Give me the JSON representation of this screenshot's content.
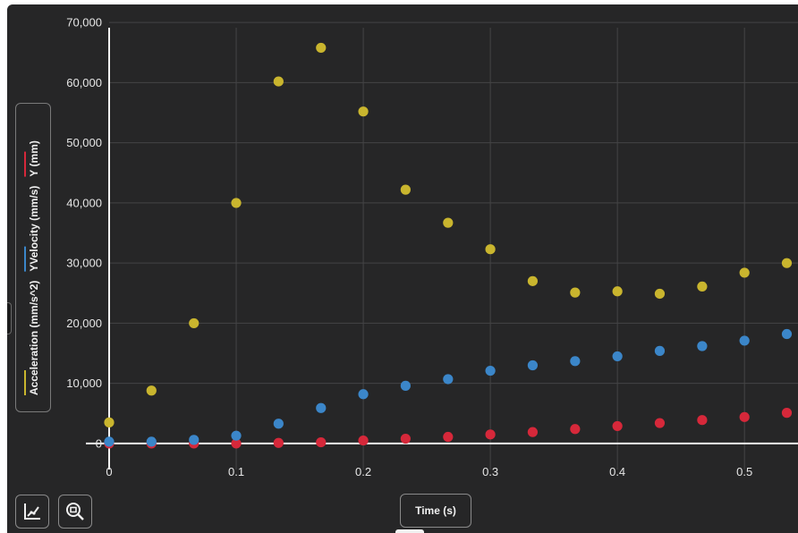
{
  "chart_data": {
    "type": "scatter",
    "title": "",
    "xlabel": "Time (s)",
    "ylabel": "",
    "x": [
      0,
      0.0333,
      0.0667,
      0.1,
      0.1333,
      0.1667,
      0.2,
      0.2333,
      0.2667,
      0.3,
      0.3333,
      0.3667,
      0.4,
      0.4333,
      0.4667,
      0.5,
      0.5333
    ],
    "xlim": [
      0,
      0.54
    ],
    "ylim": [
      -7000,
      73000
    ],
    "x_ticks": [
      0,
      0.1,
      0.2,
      0.3,
      0.4,
      0.5
    ],
    "x_tick_labels": [
      "0",
      "0.1",
      "0.2",
      "0.3",
      "0.4",
      "0.5"
    ],
    "y_ticks": [
      0,
      10000,
      20000,
      30000,
      40000,
      50000,
      60000,
      70000
    ],
    "y_tick_labels": [
      "0",
      "10,000",
      "20,000",
      "30,000",
      "40,000",
      "50,000",
      "60,000",
      "70,000"
    ],
    "grid": true,
    "legend_placement": "left",
    "series": [
      {
        "name": "Acceleration (mm/s^2)",
        "color": "#c9b52e",
        "values": [
          3500,
          8800,
          20000,
          40000,
          60200,
          65800,
          55200,
          42200,
          36700,
          32300,
          27000,
          25100,
          25300,
          24900,
          26100,
          28400,
          30000
        ]
      },
      {
        "name": "YVelocity (mm/s)",
        "color": "#3b86c9",
        "values": [
          300,
          300,
          600,
          1300,
          3300,
          5900,
          8200,
          9600,
          10700,
          12100,
          13000,
          13700,
          14500,
          15400,
          16200,
          17100,
          18200
        ]
      },
      {
        "name": "Y (mm)",
        "color": "#d6283a",
        "values": [
          0,
          0,
          0,
          0,
          100,
          200,
          500,
          800,
          1100,
          1500,
          1900,
          2400,
          2900,
          3400,
          3900,
          4400,
          5100
        ]
      }
    ]
  },
  "toolbar": {
    "axes_icon": "axes-icon",
    "zoom_icon": "zoom-fit-icon"
  }
}
